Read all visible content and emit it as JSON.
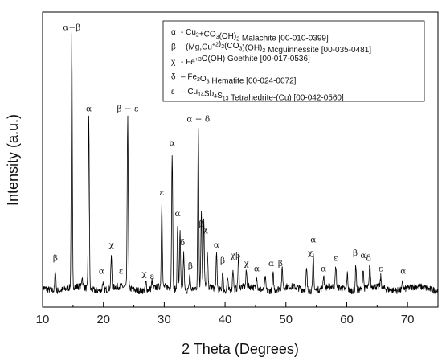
{
  "chart_data": {
    "type": "line",
    "xlabel": "2 Theta (Degrees)",
    "ylabel": "Intensity (a.u.)",
    "xlim": [
      10,
      75
    ],
    "ylim": [
      0,
      100
    ],
    "x_ticks": [
      10,
      20,
      30,
      40,
      50,
      60,
      70
    ],
    "x_tick_labels": [
      "10",
      "20",
      "30",
      "40",
      "50",
      "60",
      "70"
    ],
    "grid": false,
    "legend_position": "top-right",
    "baseline": 4,
    "peaks": [
      {
        "x": 12.1,
        "y": 12
      },
      {
        "x": 14.8,
        "y": 100
      },
      {
        "x": 16.5,
        "y": 8
      },
      {
        "x": 17.6,
        "y": 69
      },
      {
        "x": 19.9,
        "y": 7
      },
      {
        "x": 21.3,
        "y": 16
      },
      {
        "x": 24.0,
        "y": 70
      },
      {
        "x": 27.0,
        "y": 7
      },
      {
        "x": 28.0,
        "y": 7
      },
      {
        "x": 29.6,
        "y": 37
      },
      {
        "x": 31.3,
        "y": 56
      },
      {
        "x": 32.2,
        "y": 29
      },
      {
        "x": 32.6,
        "y": 26
      },
      {
        "x": 33.2,
        "y": 18
      },
      {
        "x": 34.2,
        "y": 10
      },
      {
        "x": 35.6,
        "y": 65
      },
      {
        "x": 36.1,
        "y": 33
      },
      {
        "x": 36.5,
        "y": 30
      },
      {
        "x": 37.1,
        "y": 16
      },
      {
        "x": 38.6,
        "y": 17
      },
      {
        "x": 39.6,
        "y": 12
      },
      {
        "x": 40.4,
        "y": 9
      },
      {
        "x": 41.3,
        "y": 12
      },
      {
        "x": 42.2,
        "y": 16
      },
      {
        "x": 43.5,
        "y": 10
      },
      {
        "x": 45.2,
        "y": 9
      },
      {
        "x": 46.6,
        "y": 9
      },
      {
        "x": 47.9,
        "y": 10
      },
      {
        "x": 49.4,
        "y": 11
      },
      {
        "x": 53.4,
        "y": 12
      },
      {
        "x": 54.5,
        "y": 18
      },
      {
        "x": 56.2,
        "y": 9
      },
      {
        "x": 58.2,
        "y": 12
      },
      {
        "x": 60.1,
        "y": 10
      },
      {
        "x": 61.5,
        "y": 14
      },
      {
        "x": 62.7,
        "y": 12
      },
      {
        "x": 63.8,
        "y": 13
      },
      {
        "x": 65.6,
        "y": 8
      },
      {
        "x": 69.2,
        "y": 7
      }
    ],
    "annotations": [
      {
        "text": "β",
        "x": 12.1,
        "y": 14
      },
      {
        "text": "α−β",
        "x": 14.8,
        "y": 102
      },
      {
        "text": "α",
        "x": 17.6,
        "y": 71
      },
      {
        "text": "α",
        "x": 19.7,
        "y": 9
      },
      {
        "text": "χ",
        "x": 21.3,
        "y": 19
      },
      {
        "text": "ε",
        "x": 22.9,
        "y": 9
      },
      {
        "text": "β − ε",
        "x": 24.0,
        "y": 71
      },
      {
        "text": "χ",
        "x": 26.7,
        "y": 8
      },
      {
        "text": "ε",
        "x": 28.0,
        "y": 7
      },
      {
        "text": "ε",
        "x": 29.6,
        "y": 39
      },
      {
        "text": "α",
        "x": 31.3,
        "y": 58
      },
      {
        "text": "α",
        "x": 32.2,
        "y": 31
      },
      {
        "text": "δ",
        "x": 33.0,
        "y": 20
      },
      {
        "text": "β",
        "x": 34.3,
        "y": 11
      },
      {
        "text": "α − δ",
        "x": 35.6,
        "y": 67
      },
      {
        "text": "β",
        "x": 36.1,
        "y": 27
      },
      {
        "text": "χ",
        "x": 36.8,
        "y": 25
      },
      {
        "text": "α",
        "x": 38.6,
        "y": 19
      },
      {
        "text": "β",
        "x": 39.6,
        "y": 13
      },
      {
        "text": "χβ",
        "x": 41.7,
        "y": 15
      },
      {
        "text": "χ",
        "x": 43.5,
        "y": 12
      },
      {
        "text": "α",
        "x": 45.2,
        "y": 10
      },
      {
        "text": "α",
        "x": 47.6,
        "y": 12
      },
      {
        "text": "β",
        "x": 49.1,
        "y": 12
      },
      {
        "text": "α",
        "x": 54.5,
        "y": 21
      },
      {
        "text": "χ",
        "x": 54.0,
        "y": 16
      },
      {
        "text": "α",
        "x": 56.2,
        "y": 10
      },
      {
        "text": "ε",
        "x": 58.2,
        "y": 14
      },
      {
        "text": "β",
        "x": 61.4,
        "y": 16
      },
      {
        "text": "α",
        "x": 62.7,
        "y": 15
      },
      {
        "text": "δ",
        "x": 63.6,
        "y": 14
      },
      {
        "text": "ε",
        "x": 65.6,
        "y": 10
      },
      {
        "text": "α",
        "x": 69.3,
        "y": 9
      }
    ],
    "legend": [
      {
        "symbol": "α",
        "parts": [
          [
            "-  Cu",
            "n"
          ],
          [
            "2",
            "sub"
          ],
          [
            "+CO",
            "n"
          ],
          [
            "3",
            "sub"
          ],
          [
            "(OH)",
            "n"
          ],
          [
            "2",
            "sub"
          ],
          [
            " Malachite [00-010-0399]",
            "n"
          ]
        ]
      },
      {
        "symbol": "β",
        "parts": [
          [
            "-  (Mg,Cu",
            "n"
          ],
          [
            "+2",
            "sup"
          ],
          [
            ")",
            "n"
          ],
          [
            "2",
            "sub"
          ],
          [
            "(CO",
            "n"
          ],
          [
            "3",
            "sub"
          ],
          [
            ")(OH)",
            "n"
          ],
          [
            "2",
            "sub"
          ],
          [
            "  Mcguinnessite [00-035-0481]",
            "n"
          ]
        ]
      },
      {
        "symbol": "χ",
        "parts": [
          [
            "- Fe",
            "n"
          ],
          [
            "+3",
            "sup"
          ],
          [
            "O(OH) Goethite [00-017-0536]",
            "n"
          ]
        ]
      },
      {
        "symbol": "δ",
        "parts": [
          [
            "– Fe",
            "n"
          ],
          [
            "2",
            "sub"
          ],
          [
            "O",
            "n"
          ],
          [
            "3",
            "sub"
          ],
          [
            " Hematite [00-024-0072]",
            "n"
          ]
        ]
      },
      {
        "symbol": "ε",
        "parts": [
          [
            "– Cu",
            "n"
          ],
          [
            "14",
            "sub"
          ],
          [
            "Sb",
            "n"
          ],
          [
            "4",
            "sub"
          ],
          [
            "S",
            "n"
          ],
          [
            "13",
            "sub"
          ],
          [
            " Tetrahedrite-(Cu) [00-042-0560]",
            "n"
          ]
        ]
      }
    ]
  }
}
